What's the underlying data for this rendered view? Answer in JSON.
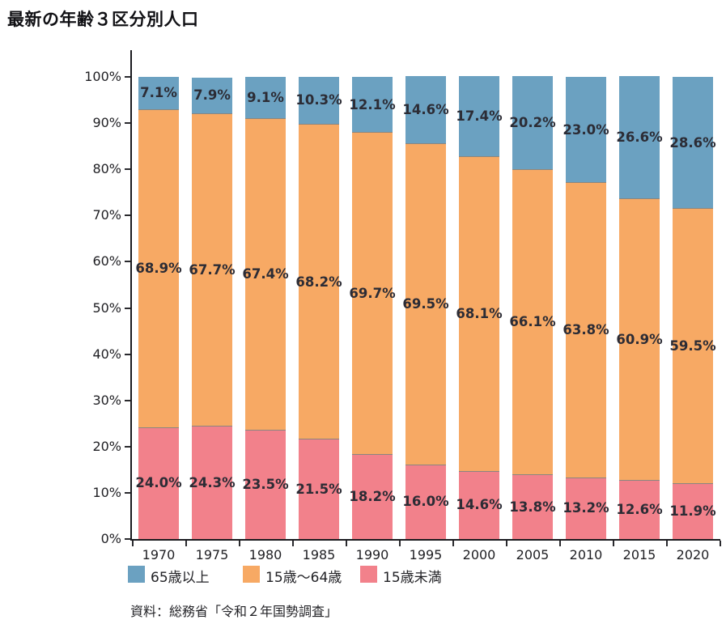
{
  "page": {
    "title": "最新の年齢３区分別人口",
    "source": "資料：総務省「令和２年国勢調査」"
  },
  "chart_data": {
    "type": "bar",
    "stacked": true,
    "title": "最新の年齢３区分別人口",
    "categories": [
      "1970",
      "1975",
      "1980",
      "1985",
      "1990",
      "1995",
      "2000",
      "2005",
      "2010",
      "2015",
      "2020"
    ],
    "series": [
      {
        "name": "15歳未満",
        "color": "#f2818b",
        "values": [
          24.0,
          24.3,
          23.5,
          21.5,
          18.2,
          16.0,
          14.6,
          13.8,
          13.2,
          12.6,
          11.9
        ]
      },
      {
        "name": "15歳〜64歳",
        "color": "#f7a964",
        "values": [
          68.9,
          67.7,
          67.4,
          68.2,
          69.7,
          69.5,
          68.1,
          66.1,
          63.8,
          60.9,
          59.5
        ]
      },
      {
        "name": "65歳以上",
        "color": "#6ba1c1",
        "values": [
          7.1,
          7.9,
          9.1,
          10.3,
          12.1,
          14.6,
          17.4,
          20.2,
          23.0,
          26.6,
          28.6
        ]
      }
    ],
    "value_suffix": "%",
    "value_decimals": 1,
    "xlabel": "",
    "ylabel": "",
    "ylim": [
      0,
      100
    ],
    "ytick_step": 10,
    "ytick_labels": [
      "0%",
      "10%",
      "20%",
      "30%",
      "40%",
      "50%",
      "60%",
      "70%",
      "80%",
      "90%",
      "100%"
    ],
    "grid": false,
    "bar_labels": "inside-centered",
    "segment_divider_color": "#8a8680",
    "axis_color": "#1b1b1f",
    "legend_position": "bottom",
    "legend": [
      "65歳以上",
      "15歳〜64歳",
      "15歳未満"
    ]
  }
}
